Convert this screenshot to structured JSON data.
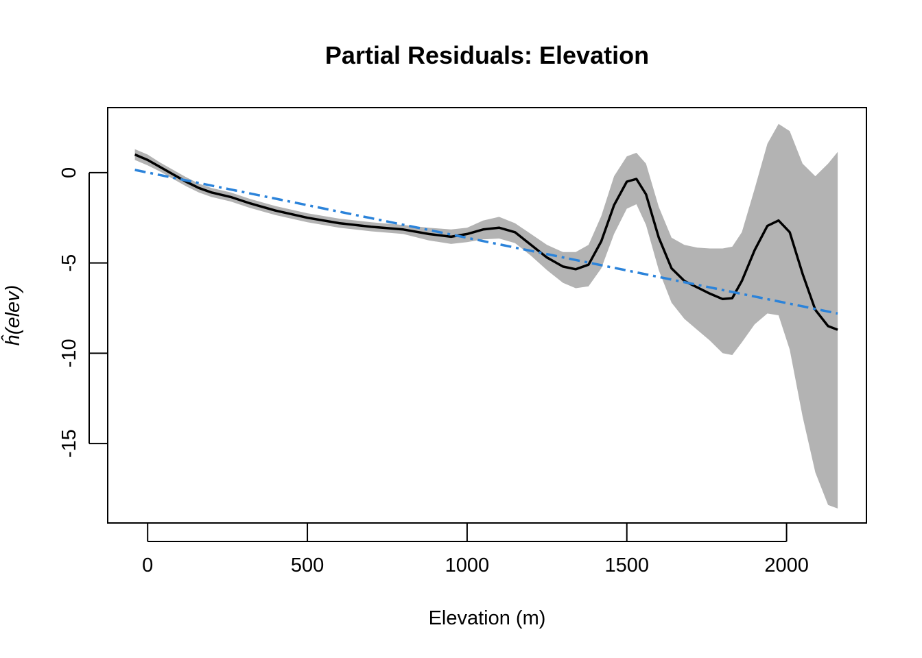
{
  "chart_data": {
    "type": "line",
    "title": "Partial Residuals: Elevation",
    "xlabel": "Elevation (m)",
    "ylabel": "ĥ(elev)",
    "xlim": [
      -125,
      2250
    ],
    "ylim": [
      -19.4,
      3.6
    ],
    "xticks": [
      0,
      500,
      1000,
      1500,
      2000
    ],
    "yticks": [
      0,
      -5,
      -10,
      -15
    ],
    "xtick_labels": [
      "0",
      "500",
      "1000",
      "1500",
      "2000"
    ],
    "ytick_labels": [
      "0",
      "-5",
      "-10",
      "-15"
    ],
    "grid": false,
    "colors": {
      "smooth": "#000000",
      "band": "#b3b3b3",
      "linear": "#2b83da"
    },
    "series": [
      {
        "style": "solid-black",
        "x": [
          -40,
          0,
          40,
          80,
          120,
          160,
          200,
          260,
          320,
          400,
          500,
          600,
          700,
          800,
          880,
          950,
          1000,
          1050,
          1100,
          1150,
          1200,
          1250,
          1300,
          1340,
          1380,
          1420,
          1460,
          1500,
          1530,
          1560,
          1600,
          1640,
          1680,
          1720,
          1760,
          1800,
          1830,
          1860,
          1900,
          1940,
          1975,
          2010,
          2050,
          2090,
          2130,
          2160
        ],
        "values": [
          1.0,
          0.7,
          0.3,
          -0.1,
          -0.5,
          -0.85,
          -1.1,
          -1.35,
          -1.7,
          -2.1,
          -2.5,
          -2.8,
          -3.0,
          -3.15,
          -3.4,
          -3.55,
          -3.4,
          -3.15,
          -3.05,
          -3.3,
          -4.0,
          -4.7,
          -5.2,
          -5.35,
          -5.1,
          -3.8,
          -1.8,
          -0.5,
          -0.35,
          -1.2,
          -3.6,
          -5.3,
          -6.0,
          -6.35,
          -6.7,
          -7.0,
          -6.95,
          -6.0,
          -4.3,
          -2.95,
          -2.65,
          -3.3,
          -5.6,
          -7.6,
          -8.5,
          -8.7
        ]
      },
      {
        "style": "dash-dot-blue",
        "x": [
          -40,
          2160
        ],
        "values": [
          0.15,
          -7.8
        ]
      }
    ],
    "band": {
      "x": [
        -40,
        0,
        40,
        80,
        120,
        160,
        200,
        260,
        320,
        400,
        500,
        600,
        700,
        800,
        880,
        950,
        1000,
        1050,
        1100,
        1150,
        1200,
        1250,
        1300,
        1340,
        1380,
        1420,
        1460,
        1500,
        1530,
        1560,
        1600,
        1640,
        1680,
        1720,
        1760,
        1800,
        1830,
        1860,
        1900,
        1940,
        1975,
        2010,
        2050,
        2090,
        2130,
        2160
      ],
      "upper": [
        1.3,
        1.0,
        0.55,
        0.15,
        -0.25,
        -0.6,
        -0.85,
        -1.1,
        -1.45,
        -1.85,
        -2.25,
        -2.55,
        -2.75,
        -2.9,
        -3.05,
        -3.15,
        -3.05,
        -2.65,
        -2.45,
        -2.8,
        -3.4,
        -4.0,
        -4.4,
        -4.4,
        -4.0,
        -2.4,
        -0.2,
        0.9,
        1.1,
        0.5,
        -1.9,
        -3.6,
        -4.0,
        -4.15,
        -4.2,
        -4.2,
        -4.1,
        -3.3,
        -0.9,
        1.6,
        2.7,
        2.3,
        0.5,
        -0.2,
        0.5,
        1.15
      ],
      "lower": [
        0.7,
        0.4,
        0.05,
        -0.35,
        -0.75,
        -1.1,
        -1.35,
        -1.6,
        -1.95,
        -2.35,
        -2.75,
        -3.05,
        -3.25,
        -3.4,
        -3.75,
        -3.95,
        -3.85,
        -3.7,
        -3.65,
        -3.9,
        -4.6,
        -5.4,
        -6.1,
        -6.4,
        -6.3,
        -5.3,
        -3.4,
        -2.0,
        -1.75,
        -2.9,
        -5.4,
        -7.2,
        -8.1,
        -8.7,
        -9.3,
        -10.0,
        -10.1,
        -9.4,
        -8.4,
        -7.8,
        -7.9,
        -9.8,
        -13.5,
        -16.6,
        -18.4,
        -18.6
      ]
    }
  }
}
